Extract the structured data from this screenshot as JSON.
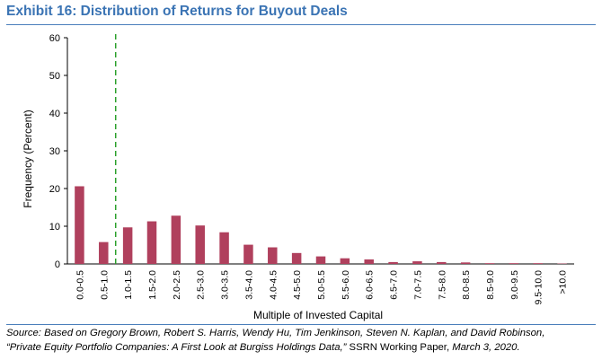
{
  "exhibit_title": "Exhibit 16: Distribution of Returns for Buyout Deals",
  "source": {
    "prefix": "Source: Based on Gregory Brown, Robert S. Harris, Wendy Hu, Tim Jenkinson, Steven N. Kaplan, and David Robinson,",
    "article": "“Private Equity Portfolio Companies: A First Look at Burgiss Holdings Data,”",
    "publication": " SSRN Working Paper, ",
    "date": "March 3, 2020."
  },
  "colors": {
    "title": "#3b74b4",
    "bar": "#b0405d",
    "reference_line": "#2aa02a",
    "rule": "#4a7ebb"
  },
  "chart_data": {
    "type": "bar",
    "xlabel": "Multiple of Invested Capital",
    "ylabel": "Frequency (Percent)",
    "ylim": [
      0,
      60
    ],
    "yticks": [
      0,
      10,
      20,
      30,
      40,
      50,
      60
    ],
    "grid": false,
    "categories": [
      "0.0-0.5",
      "0.5-1.0",
      "1.0-1.5",
      "1.5-2.0",
      "2.0-2.5",
      "2.5-3.0",
      "3.0-3.5",
      "3.5-4.0",
      "4.0-4.5",
      "4.5-5.0",
      "5.0-5.5",
      "5.5-6.0",
      "6.0-6.5",
      "6.5-7.0",
      "7.0-7.5",
      "7.5-8.0",
      "8.0-8.5",
      "8.5-9.0",
      "9.0-9.5",
      "9.5-10.0",
      ">10.0"
    ],
    "values": [
      20.6,
      5.8,
      9.7,
      11.3,
      12.8,
      10.2,
      8.4,
      5.1,
      4.4,
      2.9,
      2.0,
      1.5,
      1.2,
      0.5,
      0.7,
      0.5,
      0.4,
      0.2,
      0.2,
      0.2,
      0.1
    ],
    "reference_line": {
      "style": "dashed",
      "position_between": [
        "0.5-1.0",
        "1.0-1.5"
      ]
    }
  }
}
